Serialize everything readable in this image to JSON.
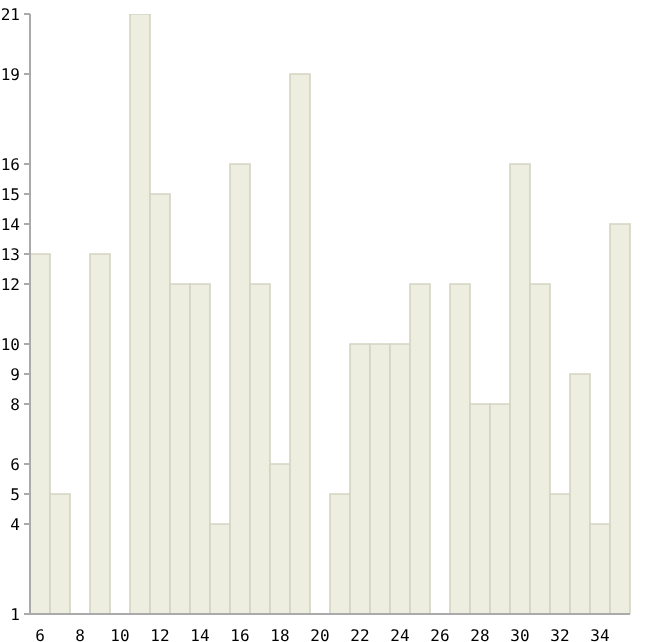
{
  "chart_data": {
    "type": "bar",
    "categories": [
      "6",
      null,
      "8",
      null,
      "10",
      null,
      "12",
      null,
      "14",
      null,
      "16",
      null,
      "18",
      null,
      "20",
      null,
      "22",
      null,
      "24",
      null,
      "26",
      null,
      "28",
      null,
      "30",
      null,
      "32",
      null,
      "34",
      null
    ],
    "values": [
      13,
      5,
      null,
      13,
      null,
      21,
      15,
      12,
      12,
      4,
      16,
      12,
      6,
      19,
      null,
      5,
      10,
      10,
      10,
      12,
      null,
      12,
      8,
      8,
      16,
      12,
      5,
      9,
      4,
      14
    ],
    "color": "#eeeee0",
    "ylim": [
      1,
      21
    ],
    "yticks": [
      1,
      4,
      5,
      6,
      8,
      9,
      10,
      12,
      13,
      14,
      15,
      16,
      19,
      21
    ],
    "grid": false,
    "legend": false
  }
}
